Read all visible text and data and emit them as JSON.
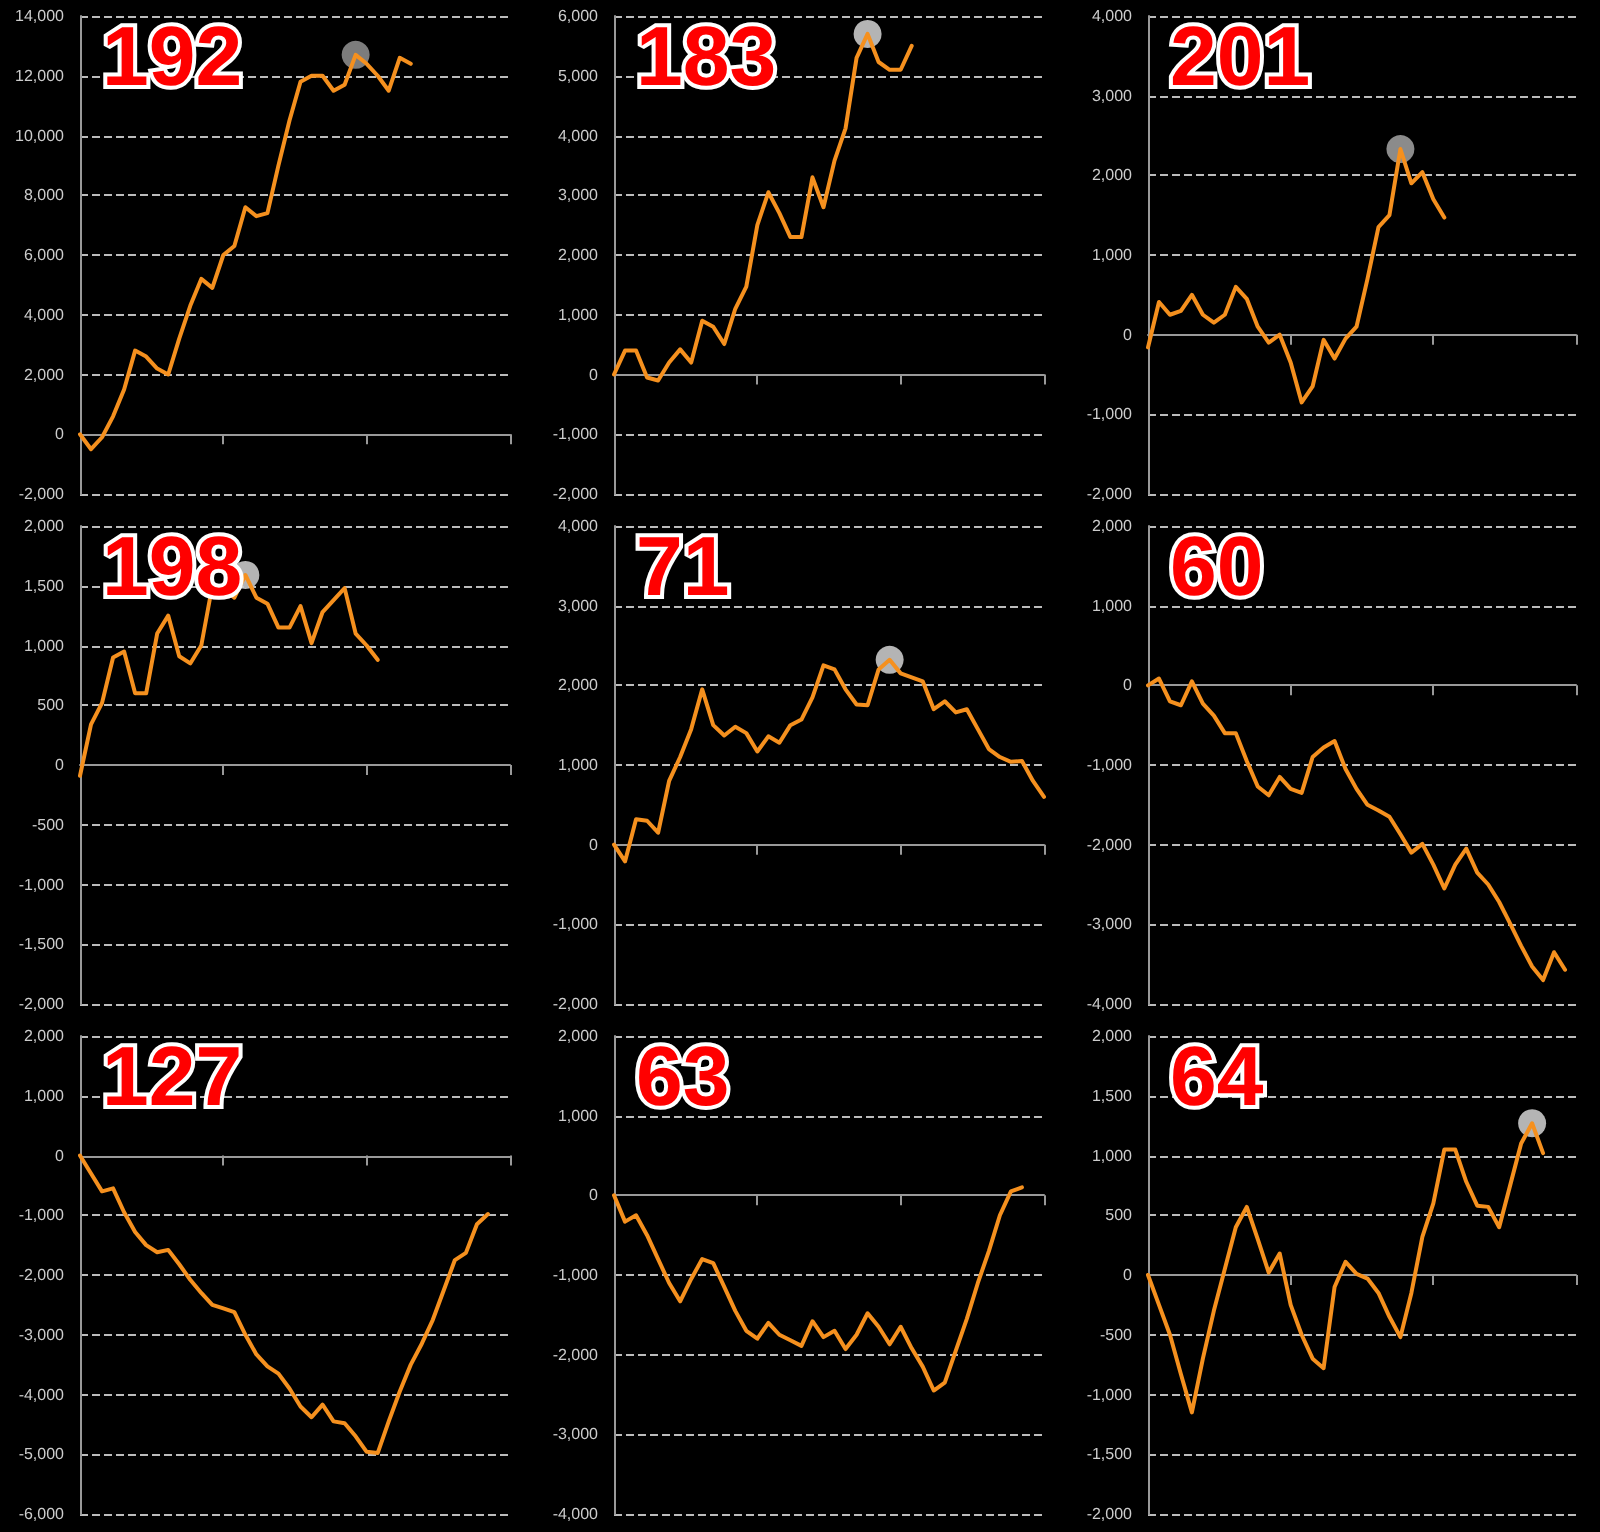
{
  "chart_data": [
    {
      "type": "line",
      "title": "192",
      "grid": "y",
      "marker": "none",
      "ylim": [
        -2000,
        14000
      ],
      "yticks": [
        {
          "value": -2000,
          "label": "-2,000"
        },
        0,
        {
          "value": 2000,
          "label": "2,000"
        },
        {
          "value": 4000,
          "label": "4,000"
        },
        {
          "value": 6000,
          "label": "6,000"
        },
        {
          "value": 8000,
          "label": "8,000"
        },
        {
          "value": 10000,
          "label": "10,000"
        },
        {
          "value": 12000,
          "label": "12,000"
        },
        {
          "value": 14000,
          "label": "14,000"
        }
      ],
      "categories": [
        null,
        null,
        null,
        null,
        null,
        null,
        null,
        null,
        null,
        null,
        null,
        null,
        null,
        null,
        null,
        null,
        null,
        null,
        null,
        null,
        null,
        null,
        null,
        null,
        null,
        null,
        null,
        null,
        null,
        null,
        null,
        null,
        null,
        null,
        null,
        null,
        null,
        null,
        null,
        null
      ],
      "series": [
        {
          "color": "#f5901e",
          "values": [
            0,
            -500,
            -100,
            600,
            1500,
            2800,
            2600,
            2200,
            2000,
            3200,
            4300,
            5200,
            4900,
            6000,
            6300,
            7600,
            7300,
            7400,
            9000,
            10500,
            11800,
            12000,
            12000,
            11500,
            11700,
            12700,
            12400,
            12000,
            11500,
            12600,
            12400,
            null,
            null,
            null,
            null,
            null,
            null,
            null,
            null,
            null
          ]
        },
        {
          "type": "scatter",
          "marker": "circle",
          "color": "#8a8a8a",
          "values": [
            null,
            null,
            null,
            null,
            null,
            null,
            null,
            null,
            null,
            null,
            null,
            null,
            null,
            null,
            null,
            null,
            null,
            null,
            null,
            null,
            null,
            null,
            null,
            null,
            null,
            12700,
            null,
            null,
            null,
            null,
            null,
            null,
            null,
            null,
            null,
            null,
            null,
            null,
            null,
            null
          ]
        }
      ]
    },
    {
      "type": "line",
      "title": "183",
      "grid": "y",
      "marker": "none",
      "ylim": [
        -2000,
        6000
      ],
      "yticks": [
        {
          "value": -2000,
          "label": "-2,000"
        },
        {
          "value": -1000,
          "label": "-1,000"
        },
        0,
        {
          "value": 1000,
          "label": "1,000"
        },
        {
          "value": 2000,
          "label": "2,000"
        },
        {
          "value": 3000,
          "label": "3,000"
        },
        {
          "value": 4000,
          "label": "4,000"
        },
        {
          "value": 5000,
          "label": "5,000"
        },
        {
          "value": 6000,
          "label": "6,000"
        }
      ],
      "categories": [
        null,
        null,
        null,
        null,
        null,
        null,
        null,
        null,
        null,
        null,
        null,
        null,
        null,
        null,
        null,
        null,
        null,
        null,
        null,
        null,
        null,
        null,
        null,
        null,
        null,
        null,
        null,
        null,
        null,
        null,
        null,
        null,
        null,
        null,
        null,
        null,
        null,
        null,
        null,
        null
      ],
      "series": [
        {
          "color": "#f5901e",
          "values": [
            0,
            400,
            400,
            -50,
            -100,
            200,
            420,
            200,
            900,
            800,
            510,
            1100,
            1470,
            2500,
            3050,
            2700,
            2300,
            2300,
            3300,
            2800,
            3580,
            4120,
            5300,
            5700,
            5230,
            5100,
            5100,
            5500,
            null,
            null,
            null,
            null,
            null,
            null,
            null,
            null,
            null,
            null,
            null,
            null
          ]
        },
        {
          "type": "scatter",
          "marker": "circle",
          "color": "#c8c8c8",
          "values": [
            null,
            null,
            null,
            null,
            null,
            null,
            null,
            null,
            null,
            null,
            null,
            null,
            null,
            null,
            null,
            null,
            null,
            null,
            null,
            null,
            null,
            null,
            null,
            5700,
            null,
            null,
            null,
            null,
            null,
            null,
            null,
            null,
            null,
            null,
            null,
            null,
            null,
            null,
            null,
            null
          ]
        }
      ]
    },
    {
      "type": "line",
      "title": "201",
      "grid": "y",
      "marker": "none",
      "ylim": [
        -2000,
        4000
      ],
      "yticks": [
        {
          "value": -2000,
          "label": "-2,000"
        },
        {
          "value": -1000,
          "label": "-1,000"
        },
        0,
        {
          "value": 1000,
          "label": "1,000"
        },
        {
          "value": 2000,
          "label": "2,000"
        },
        {
          "value": 3000,
          "label": "3,000"
        },
        {
          "value": 4000,
          "label": "4,000"
        }
      ],
      "categories": [
        null,
        null,
        null,
        null,
        null,
        null,
        null,
        null,
        null,
        null,
        null,
        null,
        null,
        null,
        null,
        null,
        null,
        null,
        null,
        null,
        null,
        null,
        null,
        null,
        null,
        null,
        null,
        null,
        null,
        null,
        null,
        null,
        null,
        null,
        null,
        null,
        null,
        null,
        null,
        null
      ],
      "series": [
        {
          "color": "#f5901e",
          "values": [
            -160,
            410,
            250,
            300,
            500,
            250,
            150,
            250,
            600,
            450,
            100,
            -100,
            0,
            -350,
            -850,
            -650,
            -65,
            -300,
            -50,
            100,
            700,
            1350,
            1500,
            2330,
            1900,
            2040,
            1700,
            1470,
            null,
            null,
            null,
            null,
            null,
            null,
            null,
            null,
            null,
            null,
            null,
            null
          ]
        },
        {
          "type": "scatter",
          "marker": "circle",
          "color": "#9a9a9a",
          "values": [
            null,
            null,
            null,
            null,
            null,
            null,
            null,
            null,
            null,
            null,
            null,
            null,
            null,
            null,
            null,
            null,
            null,
            null,
            null,
            null,
            null,
            null,
            null,
            2330,
            null,
            null,
            null,
            null,
            null,
            null,
            null,
            null,
            null,
            null,
            null,
            null,
            null,
            null,
            null,
            null
          ]
        }
      ]
    },
    {
      "type": "line",
      "title": "198",
      "grid": "y",
      "marker": "none",
      "ylim": [
        -2000,
        2000
      ],
      "yticks": [
        {
          "value": -2000,
          "label": "-2,000"
        },
        {
          "value": -1500,
          "label": "-1,500"
        },
        {
          "value": -1000,
          "label": "-1,000"
        },
        -500,
        0,
        500,
        {
          "value": 1000,
          "label": "1,000"
        },
        {
          "value": 1500,
          "label": "1,500"
        },
        {
          "value": 2000,
          "label": "2,000"
        }
      ],
      "categories": [
        null,
        null,
        null,
        null,
        null,
        null,
        null,
        null,
        null,
        null,
        null,
        null,
        null,
        null,
        null,
        null,
        null,
        null,
        null,
        null,
        null,
        null,
        null,
        null,
        null,
        null,
        null,
        null,
        null,
        null,
        null,
        null,
        null,
        null,
        null,
        null,
        null,
        null,
        null,
        null
      ],
      "series": [
        {
          "color": "#f5901e",
          "values": [
            -90,
            340,
            520,
            900,
            950,
            600,
            600,
            1100,
            1250,
            910,
            850,
            1000,
            1500,
            1480,
            1400,
            1590,
            1400,
            1350,
            1150,
            1150,
            1330,
            1020,
            1280,
            1380,
            1480,
            1100,
            1000,
            880,
            null,
            null,
            null,
            null,
            null,
            null,
            null,
            null,
            null,
            null,
            null,
            null
          ]
        },
        {
          "type": "scatter",
          "marker": "circle",
          "color": "#c8c8c8",
          "values": [
            null,
            null,
            null,
            null,
            null,
            null,
            null,
            null,
            null,
            null,
            null,
            null,
            null,
            null,
            null,
            1590,
            null,
            null,
            null,
            null,
            null,
            null,
            null,
            null,
            null,
            null,
            null,
            null,
            null,
            null,
            null,
            null,
            null,
            null,
            null,
            null,
            null,
            null,
            null,
            null
          ]
        }
      ]
    },
    {
      "type": "line",
      "title": "71",
      "grid": "y",
      "marker": "none",
      "ylim": [
        -2000,
        4000
      ],
      "yticks": [
        {
          "value": -2000,
          "label": "-2,000"
        },
        {
          "value": -1000,
          "label": "-1,000"
        },
        0,
        {
          "value": 1000,
          "label": "1,000"
        },
        {
          "value": 2000,
          "label": "2,000"
        },
        {
          "value": 3000,
          "label": "3,000"
        },
        {
          "value": 4000,
          "label": "4,000"
        }
      ],
      "categories": [
        null,
        null,
        null,
        null,
        null,
        null,
        null,
        null,
        null,
        null,
        null,
        null,
        null,
        null,
        null,
        null,
        null,
        null,
        null,
        null,
        null,
        null,
        null,
        null,
        null,
        null,
        null,
        null,
        null,
        null,
        null,
        null,
        null,
        null,
        null,
        null,
        null,
        null,
        null,
        null
      ],
      "series": [
        {
          "color": "#f5901e",
          "values": [
            0,
            -210,
            320,
            300,
            150,
            800,
            1100,
            1450,
            1950,
            1500,
            1370,
            1480,
            1400,
            1170,
            1360,
            1280,
            1500,
            1570,
            1850,
            2250,
            2200,
            1950,
            1760,
            1750,
            2200,
            2320,
            2150,
            2100,
            2050,
            1700,
            1800,
            1660,
            1700,
            1450,
            1200,
            1100,
            1040,
            1050,
            800,
            600
          ]
        },
        {
          "type": "scatter",
          "marker": "circle",
          "color": "#c8c8c8",
          "values": [
            null,
            null,
            null,
            null,
            null,
            null,
            null,
            null,
            null,
            null,
            null,
            null,
            null,
            null,
            null,
            null,
            null,
            null,
            null,
            null,
            null,
            null,
            null,
            null,
            null,
            2320,
            null,
            null,
            null,
            null,
            null,
            null,
            null,
            null,
            null,
            null,
            null,
            null,
            null,
            null
          ]
        }
      ]
    },
    {
      "type": "line",
      "title": "60",
      "grid": "y",
      "marker": "none",
      "ylim": [
        -4000,
        2000
      ],
      "yticks": [
        {
          "value": -4000,
          "label": "-4,000"
        },
        {
          "value": -3000,
          "label": "-3,000"
        },
        {
          "value": -2000,
          "label": "-2,000"
        },
        {
          "value": -1000,
          "label": "-1,000"
        },
        0,
        {
          "value": 1000,
          "label": "1,000"
        },
        {
          "value": 2000,
          "label": "2,000"
        }
      ],
      "categories": [
        null,
        null,
        null,
        null,
        null,
        null,
        null,
        null,
        null,
        null,
        null,
        null,
        null,
        null,
        null,
        null,
        null,
        null,
        null,
        null,
        null,
        null,
        null,
        null,
        null,
        null,
        null,
        null,
        null,
        null,
        null,
        null,
        null,
        null,
        null,
        null,
        null,
        null,
        null,
        null
      ],
      "series": [
        {
          "color": "#f5901e",
          "values": [
            0,
            85,
            -200,
            -250,
            50,
            -230,
            -380,
            -600,
            -600,
            -950,
            -1270,
            -1380,
            -1150,
            -1300,
            -1350,
            -900,
            -780,
            -700,
            -1050,
            -1300,
            -1500,
            -1570,
            -1650,
            -1870,
            -2100,
            -1990,
            -2250,
            -2550,
            -2250,
            -2050,
            -2350,
            -2500,
            -2720,
            -2990,
            -3270,
            -3530,
            -3700,
            -3350,
            -3570,
            null
          ]
        }
      ]
    },
    {
      "type": "line",
      "title": "127",
      "grid": "y",
      "marker": "none",
      "ylim": [
        -6000,
        2000
      ],
      "yticks": [
        {
          "value": -6000,
          "label": "-6,000"
        },
        {
          "value": -5000,
          "label": "-5,000"
        },
        {
          "value": -4000,
          "label": "-4,000"
        },
        {
          "value": -3000,
          "label": "-3,000"
        },
        {
          "value": -2000,
          "label": "-2,000"
        },
        {
          "value": -1000,
          "label": "-1,000"
        },
        0,
        {
          "value": 1000,
          "label": "1,000"
        },
        {
          "value": 2000,
          "label": "2,000"
        }
      ],
      "categories": [
        null,
        null,
        null,
        null,
        null,
        null,
        null,
        null,
        null,
        null,
        null,
        null,
        null,
        null,
        null,
        null,
        null,
        null,
        null,
        null,
        null,
        null,
        null,
        null,
        null,
        null,
        null,
        null,
        null,
        null,
        null,
        null,
        null,
        null,
        null,
        null,
        null,
        null,
        null,
        null
      ],
      "series": [
        {
          "color": "#f5901e",
          "values": [
            0,
            -300,
            -600,
            -550,
            -950,
            -1280,
            -1500,
            -1620,
            -1580,
            -1820,
            -2080,
            -2300,
            -2500,
            -2560,
            -2620,
            -3000,
            -3330,
            -3530,
            -3650,
            -3900,
            -4200,
            -4380,
            -4170,
            -4450,
            -4480,
            -4700,
            -4960,
            -4980,
            -4450,
            -3950,
            -3500,
            -3150,
            -2750,
            -2250,
            -1750,
            -1630,
            -1150,
            -980,
            null,
            null
          ]
        }
      ]
    },
    {
      "type": "line",
      "title": "63",
      "grid": "y",
      "marker": "none",
      "ylim": [
        -4000,
        2000
      ],
      "yticks": [
        {
          "value": -4000,
          "label": "-4,000"
        },
        {
          "value": -3000,
          "label": "-3,000"
        },
        {
          "value": -2000,
          "label": "-2,000"
        },
        {
          "value": -1000,
          "label": "-1,000"
        },
        0,
        {
          "value": 1000,
          "label": "1,000"
        },
        {
          "value": 2000,
          "label": "2,000"
        }
      ],
      "categories": [
        null,
        null,
        null,
        null,
        null,
        null,
        null,
        null,
        null,
        null,
        null,
        null,
        null,
        null,
        null,
        null,
        null,
        null,
        null,
        null,
        null,
        null,
        null,
        null,
        null,
        null,
        null,
        null,
        null,
        null,
        null,
        null,
        null,
        null,
        null,
        null,
        null,
        null,
        null,
        null
      ],
      "series": [
        {
          "color": "#f5901e",
          "values": [
            0,
            -330,
            -250,
            -500,
            -800,
            -1100,
            -1330,
            -1050,
            -800,
            -850,
            -1150,
            -1450,
            -1700,
            -1800,
            -1600,
            -1750,
            -1820,
            -1890,
            -1580,
            -1780,
            -1700,
            -1930,
            -1750,
            -1480,
            -1650,
            -1870,
            -1650,
            -1920,
            -2150,
            -2450,
            -2350,
            -1950,
            -1550,
            -1100,
            -700,
            -250,
            50,
            100,
            null,
            null
          ]
        }
      ]
    },
    {
      "type": "line",
      "title": "64",
      "grid": "y",
      "marker": "none",
      "ylim": [
        -2000,
        2000
      ],
      "yticks": [
        {
          "value": -2000,
          "label": "-2,000"
        },
        {
          "value": -1500,
          "label": "-1,500"
        },
        {
          "value": -1000,
          "label": "-1,000"
        },
        -500,
        0,
        500,
        {
          "value": 1000,
          "label": "1,000"
        },
        {
          "value": 1500,
          "label": "1,500"
        },
        {
          "value": 2000,
          "label": "2,000"
        }
      ],
      "categories": [
        null,
        null,
        null,
        null,
        null,
        null,
        null,
        null,
        null,
        null,
        null,
        null,
        null,
        null,
        null,
        null,
        null,
        null,
        null,
        null,
        null,
        null,
        null,
        null,
        null,
        null,
        null,
        null,
        null,
        null,
        null,
        null,
        null,
        null,
        null,
        null,
        null,
        null,
        null,
        null
      ],
      "series": [
        {
          "color": "#f5901e",
          "values": [
            0,
            -250,
            -500,
            -830,
            -1150,
            -700,
            -300,
            50,
            400,
            570,
            300,
            20,
            180,
            -250,
            -500,
            -700,
            -780,
            -100,
            110,
            10,
            -30,
            -150,
            -350,
            -520,
            -150,
            320,
            600,
            1050,
            1050,
            780,
            580,
            570,
            400,
            750,
            1100,
            1270,
            1020,
            null,
            null,
            null
          ]
        },
        {
          "type": "scatter",
          "marker": "circle",
          "color": "#c8c8c8",
          "values": [
            null,
            null,
            null,
            null,
            null,
            null,
            null,
            null,
            null,
            null,
            null,
            null,
            null,
            null,
            null,
            null,
            null,
            null,
            null,
            null,
            null,
            null,
            null,
            null,
            null,
            null,
            null,
            null,
            null,
            null,
            null,
            null,
            null,
            null,
            null,
            1270,
            null,
            null,
            null,
            null
          ]
        }
      ]
    }
  ]
}
